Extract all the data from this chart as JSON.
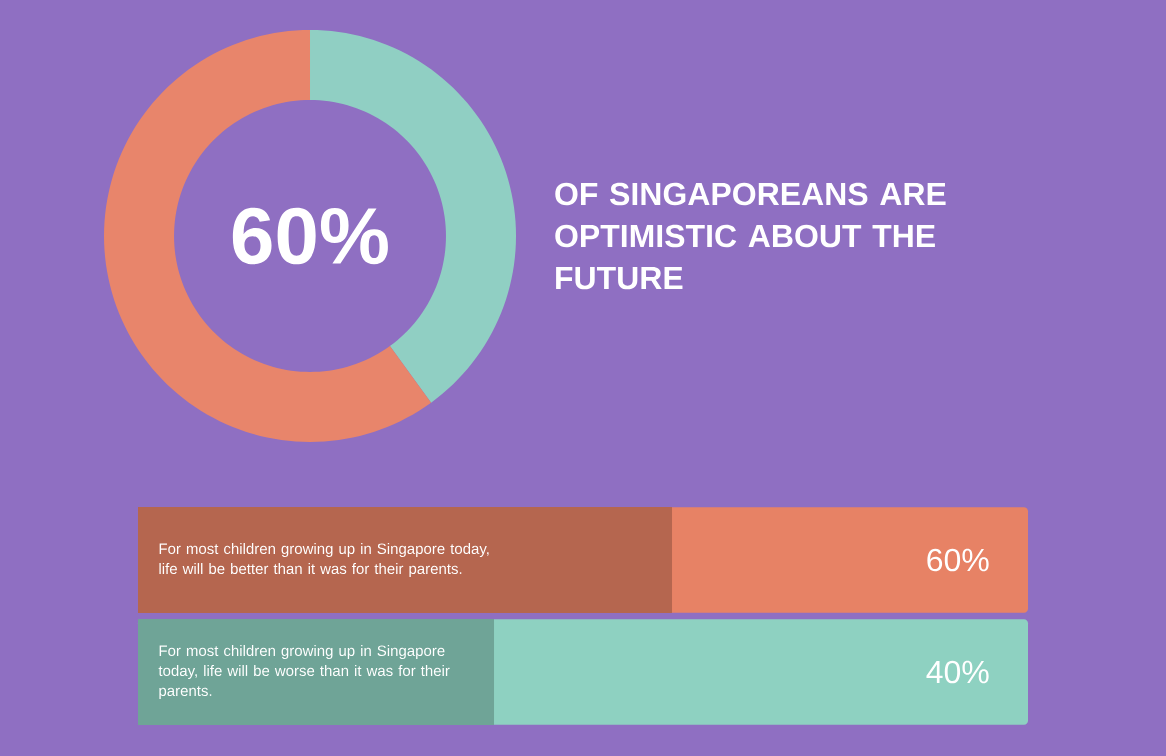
{
  "chart_data": [
    {
      "type": "donut",
      "title": "OF SINGAPOREANS ARE OPTIMISTIC ABOUT THE FUTURE",
      "categories": [
        null,
        null
      ],
      "values": [
        40,
        60
      ],
      "colors": [
        "#90cfc3",
        "#e8856b"
      ],
      "annotations": [
        "60%"
      ]
    },
    {
      "type": "bar",
      "orientation": "horizontal",
      "categories": [
        "For most children growing up in Singapore today, life will be better than it was for their parents.",
        "For most children growing up in Singapore today, life will be worse than it was for their parents."
      ],
      "values": [
        60,
        40
      ],
      "colors": [
        "#b5664f",
        "#6fa497"
      ],
      "xlim": [
        0,
        100
      ],
      "value_labels": [
        "60%",
        "40%"
      ]
    }
  ]
}
